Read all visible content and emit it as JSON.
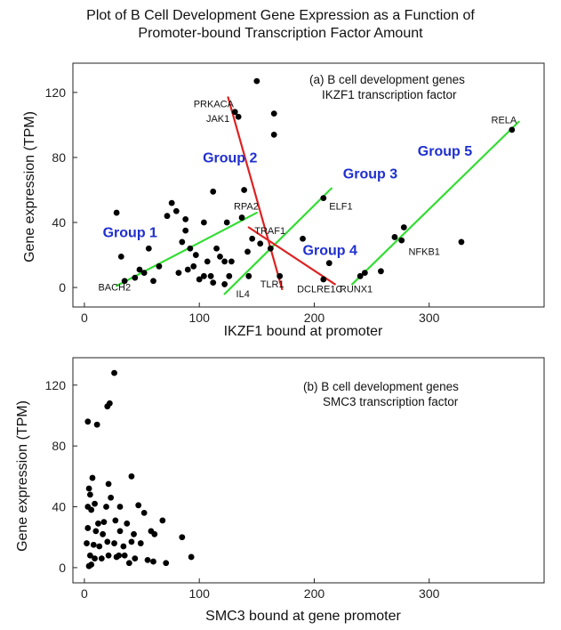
{
  "figure": {
    "title_line1": "Plot of B Cell Development Gene Expression as a Function of",
    "title_line2": "Promoter-bound Transcription Factor Amount"
  },
  "chart_data": [
    {
      "type": "scatter",
      "xlabel": "IKZF1 bound at promoter",
      "ylabel": "Gene expression (TPM)",
      "xlim": [
        -10,
        400
      ],
      "ylim": [
        -12,
        138
      ],
      "xticks": [
        0,
        100,
        200,
        300
      ],
      "yticks": [
        0,
        40,
        80,
        120
      ],
      "annotation_line1": "(a) B cell development genes",
      "annotation_line2": "IKZF1 transcription factor",
      "point_color": "#000000",
      "points": [
        {
          "x": 28,
          "y": 46
        },
        {
          "x": 32,
          "y": 19
        },
        {
          "x": 35,
          "y": 4
        },
        {
          "x": 44,
          "y": 6
        },
        {
          "x": 48,
          "y": 11
        },
        {
          "x": 52,
          "y": 9
        },
        {
          "x": 56,
          "y": 24
        },
        {
          "x": 60,
          "y": 4
        },
        {
          "x": 65,
          "y": 13
        },
        {
          "x": 72,
          "y": 44
        },
        {
          "x": 76,
          "y": 52
        },
        {
          "x": 80,
          "y": 47
        },
        {
          "x": 82,
          "y": 9
        },
        {
          "x": 85,
          "y": 28
        },
        {
          "x": 88,
          "y": 42
        },
        {
          "x": 88,
          "y": 35
        },
        {
          "x": 90,
          "y": 11
        },
        {
          "x": 92,
          "y": 24
        },
        {
          "x": 95,
          "y": 13
        },
        {
          "x": 97,
          "y": 20
        },
        {
          "x": 100,
          "y": 5
        },
        {
          "x": 104,
          "y": 40
        },
        {
          "x": 104,
          "y": 7
        },
        {
          "x": 107,
          "y": 16
        },
        {
          "x": 110,
          "y": 7
        },
        {
          "x": 112,
          "y": 59
        },
        {
          "x": 112,
          "y": 3
        },
        {
          "x": 115,
          "y": 24
        },
        {
          "x": 118,
          "y": 19
        },
        {
          "x": 122,
          "y": 16
        },
        {
          "x": 124,
          "y": 40
        },
        {
          "x": 126,
          "y": 7
        },
        {
          "x": 128,
          "y": 16
        },
        {
          "x": 131,
          "y": 108
        },
        {
          "x": 134,
          "y": 105
        },
        {
          "x": 137,
          "y": 43
        },
        {
          "x": 139,
          "y": 60
        },
        {
          "x": 142,
          "y": 22
        },
        {
          "x": 146,
          "y": 30
        },
        {
          "x": 150,
          "y": 127
        },
        {
          "x": 153,
          "y": 27
        },
        {
          "x": 162,
          "y": 24
        },
        {
          "x": 165,
          "y": 107
        },
        {
          "x": 165,
          "y": 94
        },
        {
          "x": 170,
          "y": 7
        },
        {
          "x": 190,
          "y": 30
        },
        {
          "x": 208,
          "y": 55
        },
        {
          "x": 208,
          "y": 5
        },
        {
          "x": 213,
          "y": 15
        },
        {
          "x": 240,
          "y": 7
        },
        {
          "x": 244,
          "y": 9
        },
        {
          "x": 258,
          "y": 10
        },
        {
          "x": 270,
          "y": 31
        },
        {
          "x": 276,
          "y": 29
        },
        {
          "x": 278,
          "y": 37
        },
        {
          "x": 328,
          "y": 28
        },
        {
          "x": 372,
          "y": 97
        },
        {
          "x": 122,
          "y": 2
        },
        {
          "x": 143,
          "y": 7
        }
      ],
      "gene_labels": [
        {
          "text": "PRKACA",
          "x": 95,
          "y": 111
        },
        {
          "text": "JAK1",
          "x": 106,
          "y": 102
        },
        {
          "text": "RPA2",
          "x": 130,
          "y": 48
        },
        {
          "text": "BACH2",
          "x": 12,
          "y": -2
        },
        {
          "text": "TRAF1",
          "x": 148,
          "y": 33
        },
        {
          "text": "IL4",
          "x": 132,
          "y": -6
        },
        {
          "text": "TLR1",
          "x": 153,
          "y": 0
        },
        {
          "text": "DCLRE1C",
          "x": 185,
          "y": -3
        },
        {
          "text": "ELF1",
          "x": 213,
          "y": 48
        },
        {
          "text": "RUNX1",
          "x": 222,
          "y": -3
        },
        {
          "text": "NFKB1",
          "x": 282,
          "y": 20
        },
        {
          "text": "RELA",
          "x": 354,
          "y": 101
        }
      ],
      "trend_lines": [
        {
          "name": "Group 1",
          "color": "#33dd33",
          "x1": 28,
          "y1": 1,
          "x2": 150,
          "y2": 46
        },
        {
          "name": "Group 2",
          "color": "#dd2222",
          "x1": 125,
          "y1": 117,
          "x2": 172,
          "y2": -1
        },
        {
          "name": "Group 3",
          "color": "#33dd33",
          "x1": 122,
          "y1": -4,
          "x2": 215,
          "y2": 61
        },
        {
          "name": "Group 4",
          "color": "#dd2222",
          "x1": 143,
          "y1": 37,
          "x2": 218,
          "y2": 2
        },
        {
          "name": "Group 5",
          "color": "#33dd33",
          "x1": 233,
          "y1": 2,
          "x2": 378,
          "y2": 102
        }
      ],
      "group_labels": [
        {
          "text": "Group 1",
          "x": 16,
          "y": 31
        },
        {
          "text": "Group 2",
          "x": 103,
          "y": 77
        },
        {
          "text": "Group 3",
          "x": 225,
          "y": 67
        },
        {
          "text": "Group 4",
          "x": 190,
          "y": 20
        },
        {
          "text": "Group 5",
          "x": 290,
          "y": 81
        }
      ]
    },
    {
      "type": "scatter",
      "xlabel": "SMC3 bound at gene promoter",
      "ylabel": "Gene expression (TPM)",
      "xlim": [
        -10,
        400
      ],
      "ylim": [
        -10,
        138
      ],
      "xticks": [
        0,
        100,
        200,
        300
      ],
      "yticks": [
        0,
        40,
        80,
        120
      ],
      "annotation_line1": "(b) B cell development genes",
      "annotation_line2": "SMC3 transcription factor",
      "point_color": "#000000",
      "points": [
        {
          "x": 3,
          "y": 96
        },
        {
          "x": 11,
          "y": 94
        },
        {
          "x": 20,
          "y": 106
        },
        {
          "x": 22,
          "y": 108
        },
        {
          "x": 26,
          "y": 128
        },
        {
          "x": 7,
          "y": 59
        },
        {
          "x": 21,
          "y": 55
        },
        {
          "x": 41,
          "y": 60
        },
        {
          "x": 4,
          "y": 52
        },
        {
          "x": 5,
          "y": 48
        },
        {
          "x": 9,
          "y": 42
        },
        {
          "x": 3,
          "y": 40
        },
        {
          "x": 6,
          "y": 38
        },
        {
          "x": 12,
          "y": 29
        },
        {
          "x": 23,
          "y": 46
        },
        {
          "x": 31,
          "y": 40
        },
        {
          "x": 47,
          "y": 41
        },
        {
          "x": 17,
          "y": 30
        },
        {
          "x": 27,
          "y": 31
        },
        {
          "x": 37,
          "y": 29
        },
        {
          "x": 52,
          "y": 36
        },
        {
          "x": 68,
          "y": 31
        },
        {
          "x": 3,
          "y": 26
        },
        {
          "x": 10,
          "y": 24
        },
        {
          "x": 16,
          "y": 22
        },
        {
          "x": 31,
          "y": 24
        },
        {
          "x": 43,
          "y": 22
        },
        {
          "x": 58,
          "y": 24
        },
        {
          "x": 2,
          "y": 16
        },
        {
          "x": 8,
          "y": 15
        },
        {
          "x": 13,
          "y": 14
        },
        {
          "x": 20,
          "y": 17
        },
        {
          "x": 26,
          "y": 16
        },
        {
          "x": 34,
          "y": 14
        },
        {
          "x": 41,
          "y": 17
        },
        {
          "x": 49,
          "y": 16
        },
        {
          "x": 61,
          "y": 22
        },
        {
          "x": 85,
          "y": 20
        },
        {
          "x": 5,
          "y": 8
        },
        {
          "x": 9,
          "y": 6
        },
        {
          "x": 15,
          "y": 6
        },
        {
          "x": 21,
          "y": 8
        },
        {
          "x": 28,
          "y": 7
        },
        {
          "x": 35,
          "y": 8
        },
        {
          "x": 44,
          "y": 6
        },
        {
          "x": 55,
          "y": 5
        },
        {
          "x": 6,
          "y": 2
        },
        {
          "x": 39,
          "y": 3
        },
        {
          "x": 60,
          "y": 4
        },
        {
          "x": 71,
          "y": 3
        },
        {
          "x": 93,
          "y": 7
        },
        {
          "x": 4,
          "y": 1
        },
        {
          "x": 30,
          "y": 8
        },
        {
          "x": 19,
          "y": 40
        }
      ]
    }
  ]
}
